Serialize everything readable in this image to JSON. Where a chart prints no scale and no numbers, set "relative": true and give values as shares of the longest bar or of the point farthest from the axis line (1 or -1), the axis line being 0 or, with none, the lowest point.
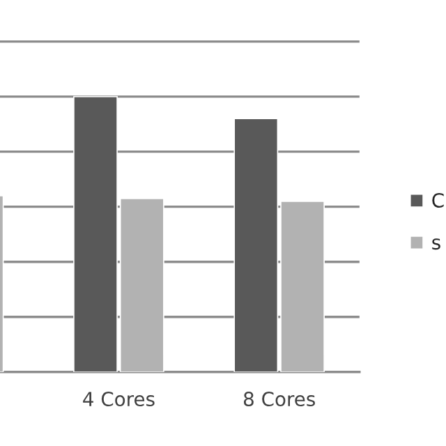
{
  "chart_data": {
    "type": "bar",
    "relative": true,
    "categories": [
      null,
      "4 Cores",
      "8 Cores"
    ],
    "series": [
      {
        "name": "C",
        "color": "#595959",
        "values": [
          null,
          1,
          0.92
        ]
      },
      {
        "name": "s",
        "color": "#b2b2b2",
        "values": [
          0.64,
          0.63,
          0.62
        ]
      }
    ],
    "grid": "y",
    "legend": "right"
  }
}
